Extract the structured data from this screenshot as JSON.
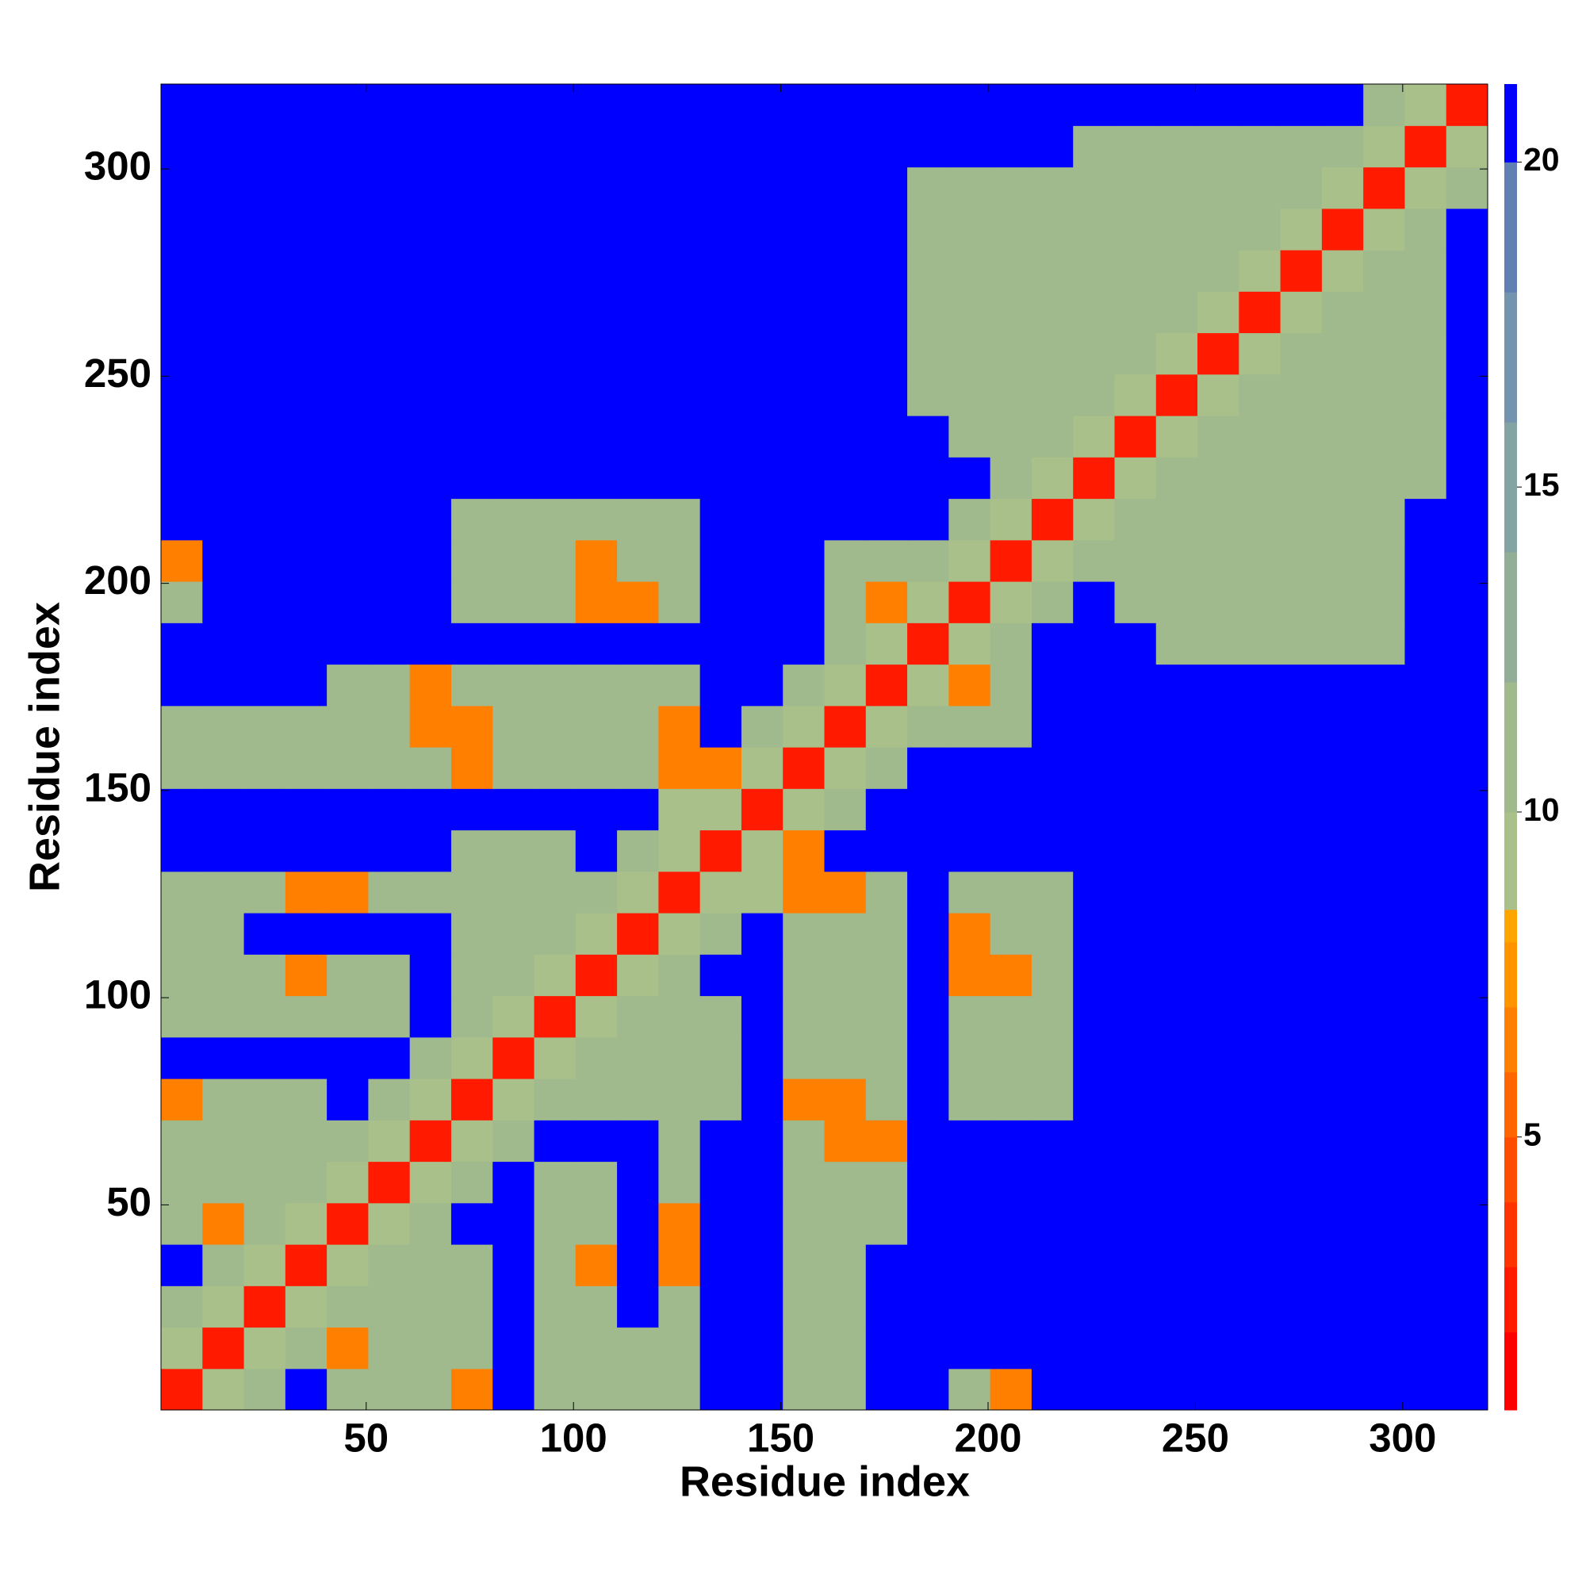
{
  "chart_data": {
    "type": "heatmap",
    "xlabel": "Residue index",
    "ylabel": "Residue index",
    "bins": [
      0.5,
      10.5,
      20.5,
      30.5,
      40.5,
      50.5,
      60.5,
      70.5,
      80.5,
      90.5,
      100.5,
      110.5,
      120.5,
      130.5,
      140.5,
      150.5,
      160.5,
      170.5,
      180.5,
      190.5,
      200.5,
      210.5,
      220.5,
      230.5,
      240.5,
      250.5,
      260.5,
      270.5,
      280.5,
      290.5,
      300.5,
      310.5,
      320.5
    ],
    "xlim": [
      0.5,
      320.5
    ],
    "ylim": [
      0.5,
      320.5
    ],
    "xticks": [
      50,
      100,
      150,
      200,
      250,
      300
    ],
    "yticks": [
      50,
      100,
      150,
      200,
      250,
      300
    ],
    "zlim": [
      0.8,
      21.2
    ],
    "zticks": [
      5,
      10,
      15,
      20
    ],
    "color_levels": [
      {
        "max": 2,
        "color": "#ff0000"
      },
      {
        "max": 3,
        "color": "#ff1a00"
      },
      {
        "max": 4,
        "color": "#ff3300"
      },
      {
        "max": 5,
        "color": "#ff4d00"
      },
      {
        "max": 6,
        "color": "#ff6600"
      },
      {
        "max": 7,
        "color": "#ff7f00"
      },
      {
        "max": 8,
        "color": "#ff9400"
      },
      {
        "max": 8.5,
        "color": "#ffa500"
      },
      {
        "max": 10,
        "color": "#a9c08a"
      },
      {
        "max": 12,
        "color": "#a0b98d"
      },
      {
        "max": 14,
        "color": "#93ae97"
      },
      {
        "max": 16,
        "color": "#84a3a3"
      },
      {
        "max": 18,
        "color": "#7493ae"
      },
      {
        "max": 20,
        "color": "#6080b4"
      },
      {
        "max": 21.2,
        "color": "#0000ff"
      }
    ],
    "z": [
      [
        3,
        9,
        11,
        21,
        11,
        11,
        11,
        7,
        21,
        11,
        11,
        11,
        11,
        21,
        21,
        11,
        11,
        21,
        21,
        11,
        7,
        21,
        21,
        21,
        21,
        21,
        21,
        21,
        21,
        21,
        21,
        21
      ],
      [
        9,
        3,
        9,
        11,
        7,
        11,
        11,
        11,
        21,
        11,
        11,
        11,
        11,
        21,
        21,
        11,
        11,
        21,
        21,
        21,
        21,
        21,
        21,
        21,
        21,
        21,
        21,
        21,
        21,
        21,
        21,
        21
      ],
      [
        11,
        9,
        3,
        9,
        11,
        11,
        11,
        11,
        21,
        11,
        11,
        21,
        11,
        21,
        21,
        11,
        11,
        21,
        21,
        21,
        21,
        21,
        21,
        21,
        21,
        21,
        21,
        21,
        21,
        21,
        21,
        21
      ],
      [
        21,
        11,
        9,
        3,
        9,
        11,
        11,
        11,
        21,
        11,
        7,
        21,
        7,
        21,
        21,
        11,
        11,
        21,
        21,
        21,
        21,
        21,
        21,
        21,
        21,
        21,
        21,
        21,
        21,
        21,
        21,
        21
      ],
      [
        11,
        7,
        11,
        9,
        3,
        9,
        11,
        21,
        21,
        11,
        11,
        21,
        7,
        21,
        21,
        11,
        11,
        11,
        21,
        21,
        21,
        21,
        21,
        21,
        21,
        21,
        21,
        21,
        21,
        21,
        21,
        21
      ],
      [
        11,
        11,
        11,
        11,
        9,
        3,
        9,
        11,
        21,
        11,
        11,
        21,
        11,
        21,
        21,
        11,
        11,
        11,
        21,
        21,
        21,
        21,
        21,
        21,
        21,
        21,
        21,
        21,
        21,
        21,
        21,
        21
      ],
      [
        11,
        11,
        11,
        11,
        11,
        9,
        3,
        9,
        11,
        21,
        21,
        21,
        11,
        21,
        21,
        11,
        7,
        7,
        21,
        21,
        21,
        21,
        21,
        21,
        21,
        21,
        21,
        21,
        21,
        21,
        21,
        21
      ],
      [
        7,
        11,
        11,
        11,
        21,
        11,
        9,
        3,
        9,
        11,
        11,
        11,
        11,
        11,
        21,
        7,
        7,
        11,
        21,
        11,
        11,
        11,
        21,
        21,
        21,
        21,
        21,
        21,
        21,
        21,
        21,
        21
      ],
      [
        21,
        21,
        21,
        21,
        21,
        21,
        11,
        9,
        3,
        9,
        11,
        11,
        11,
        11,
        21,
        11,
        11,
        11,
        21,
        11,
        11,
        11,
        21,
        21,
        21,
        21,
        21,
        21,
        21,
        21,
        21,
        21
      ],
      [
        11,
        11,
        11,
        11,
        11,
        11,
        21,
        11,
        9,
        3,
        9,
        11,
        11,
        11,
        21,
        11,
        11,
        11,
        21,
        11,
        11,
        11,
        21,
        21,
        21,
        21,
        21,
        21,
        21,
        21,
        21,
        21
      ],
      [
        11,
        11,
        11,
        7,
        11,
        11,
        21,
        11,
        11,
        9,
        3,
        9,
        11,
        21,
        21,
        11,
        11,
        11,
        21,
        7,
        7,
        11,
        21,
        21,
        21,
        21,
        21,
        21,
        21,
        21,
        21,
        21
      ],
      [
        11,
        11,
        21,
        21,
        21,
        21,
        21,
        11,
        11,
        11,
        9,
        3,
        9,
        11,
        21,
        11,
        11,
        11,
        21,
        7,
        11,
        11,
        21,
        21,
        21,
        21,
        21,
        21,
        21,
        21,
        21,
        21
      ],
      [
        11,
        11,
        11,
        7,
        7,
        11,
        11,
        11,
        11,
        11,
        11,
        9,
        3,
        9,
        9,
        7,
        7,
        11,
        21,
        11,
        11,
        11,
        21,
        21,
        21,
        21,
        21,
        21,
        21,
        21,
        21,
        21
      ],
      [
        21,
        21,
        21,
        21,
        21,
        21,
        21,
        11,
        11,
        11,
        21,
        11,
        9,
        3,
        9,
        7,
        21,
        21,
        21,
        21,
        21,
        21,
        21,
        21,
        21,
        21,
        21,
        21,
        21,
        21,
        21,
        21
      ],
      [
        21,
        21,
        21,
        21,
        21,
        21,
        21,
        21,
        21,
        21,
        21,
        21,
        9,
        9,
        3,
        9,
        11,
        21,
        21,
        21,
        21,
        21,
        21,
        21,
        21,
        21,
        21,
        21,
        21,
        21,
        21,
        21
      ],
      [
        11,
        11,
        11,
        11,
        11,
        11,
        11,
        7,
        11,
        11,
        11,
        11,
        7,
        7,
        9,
        3,
        9,
        11,
        21,
        21,
        21,
        21,
        21,
        21,
        21,
        21,
        21,
        21,
        21,
        21,
        21,
        21
      ],
      [
        11,
        11,
        11,
        11,
        11,
        11,
        7,
        7,
        11,
        11,
        11,
        11,
        7,
        21,
        11,
        9,
        3,
        9,
        11,
        11,
        11,
        21,
        21,
        21,
        21,
        21,
        21,
        21,
        21,
        21,
        21,
        21
      ],
      [
        21,
        21,
        21,
        21,
        11,
        11,
        7,
        11,
        11,
        11,
        11,
        11,
        11,
        21,
        21,
        11,
        9,
        3,
        9,
        7,
        11,
        21,
        21,
        21,
        21,
        21,
        21,
        21,
        21,
        21,
        21,
        21
      ],
      [
        21,
        21,
        21,
        21,
        21,
        21,
        21,
        21,
        21,
        21,
        21,
        21,
        21,
        21,
        21,
        21,
        11,
        9,
        3,
        9,
        11,
        21,
        21,
        21,
        11,
        11,
        11,
        11,
        11,
        11,
        21,
        21
      ],
      [
        11,
        21,
        21,
        21,
        21,
        21,
        21,
        11,
        11,
        11,
        7,
        7,
        11,
        21,
        21,
        21,
        11,
        7,
        9,
        3,
        9,
        11,
        21,
        11,
        11,
        11,
        11,
        11,
        11,
        11,
        21,
        21
      ],
      [
        7,
        21,
        21,
        21,
        21,
        21,
        21,
        11,
        11,
        11,
        7,
        11,
        11,
        21,
        21,
        21,
        11,
        11,
        11,
        9,
        3,
        9,
        11,
        11,
        11,
        11,
        11,
        11,
        11,
        11,
        21,
        21
      ],
      [
        21,
        21,
        21,
        21,
        21,
        21,
        21,
        11,
        11,
        11,
        11,
        11,
        11,
        21,
        21,
        21,
        21,
        21,
        21,
        11,
        9,
        3,
        9,
        11,
        11,
        11,
        11,
        11,
        11,
        11,
        21,
        21
      ],
      [
        21,
        21,
        21,
        21,
        21,
        21,
        21,
        21,
        21,
        21,
        21,
        21,
        21,
        21,
        21,
        21,
        21,
        21,
        21,
        21,
        11,
        9,
        3,
        9,
        11,
        11,
        11,
        11,
        11,
        11,
        11,
        21
      ],
      [
        21,
        21,
        21,
        21,
        21,
        21,
        21,
        21,
        21,
        21,
        21,
        21,
        21,
        21,
        21,
        21,
        21,
        21,
        21,
        11,
        11,
        11,
        9,
        3,
        9,
        11,
        11,
        11,
        11,
        11,
        11,
        21
      ],
      [
        21,
        21,
        21,
        21,
        21,
        21,
        21,
        21,
        21,
        21,
        21,
        21,
        21,
        21,
        21,
        21,
        21,
        21,
        11,
        11,
        11,
        11,
        11,
        9,
        3,
        9,
        11,
        11,
        11,
        11,
        11,
        21
      ],
      [
        21,
        21,
        21,
        21,
        21,
        21,
        21,
        21,
        21,
        21,
        21,
        21,
        21,
        21,
        21,
        21,
        21,
        21,
        11,
        11,
        11,
        11,
        11,
        11,
        9,
        3,
        9,
        11,
        11,
        11,
        11,
        21
      ],
      [
        21,
        21,
        21,
        21,
        21,
        21,
        21,
        21,
        21,
        21,
        21,
        21,
        21,
        21,
        21,
        21,
        21,
        21,
        11,
        11,
        11,
        11,
        11,
        11,
        11,
        9,
        3,
        9,
        11,
        11,
        11,
        21
      ],
      [
        21,
        21,
        21,
        21,
        21,
        21,
        21,
        21,
        21,
        21,
        21,
        21,
        21,
        21,
        21,
        21,
        21,
        21,
        11,
        11,
        11,
        11,
        11,
        11,
        11,
        11,
        9,
        3,
        9,
        11,
        11,
        21
      ],
      [
        21,
        21,
        21,
        21,
        21,
        21,
        21,
        21,
        21,
        21,
        21,
        21,
        21,
        21,
        21,
        21,
        21,
        21,
        11,
        11,
        11,
        11,
        11,
        11,
        11,
        11,
        11,
        9,
        3,
        9,
        11,
        21
      ],
      [
        21,
        21,
        21,
        21,
        21,
        21,
        21,
        21,
        21,
        21,
        21,
        21,
        21,
        21,
        21,
        21,
        21,
        21,
        11,
        11,
        11,
        11,
        11,
        11,
        11,
        11,
        11,
        11,
        9,
        3,
        9,
        11
      ],
      [
        21,
        21,
        21,
        21,
        21,
        21,
        21,
        21,
        21,
        21,
        21,
        21,
        21,
        21,
        21,
        21,
        21,
        21,
        21,
        21,
        21,
        21,
        11,
        11,
        11,
        11,
        11,
        11,
        11,
        9,
        3,
        9
      ],
      [
        21,
        21,
        21,
        21,
        21,
        21,
        21,
        21,
        21,
        21,
        21,
        21,
        21,
        21,
        21,
        21,
        21,
        21,
        21,
        21,
        21,
        21,
        21,
        21,
        21,
        21,
        21,
        21,
        21,
        11,
        9,
        3
      ]
    ]
  }
}
